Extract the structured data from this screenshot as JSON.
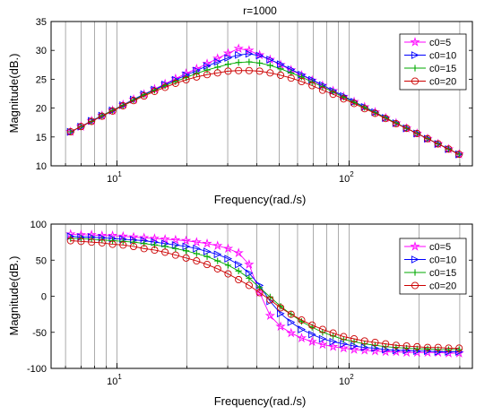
{
  "chart_data": [
    {
      "type": "line",
      "title": "r=1000",
      "xlabel": "Frequency(rad./s)",
      "ylabel": "Magnitude(dB.)",
      "xscale": "log",
      "xlim": [
        5.2,
        340
      ],
      "ylim": [
        10,
        35
      ],
      "yticks": [
        10,
        15,
        20,
        25,
        30,
        35
      ],
      "xticks": [
        {
          "value": 10,
          "base": "10",
          "exp": "1"
        },
        {
          "value": 100,
          "base": "10",
          "exp": "2"
        }
      ],
      "grid": "vertical-only",
      "legend_position": "top-right",
      "x": [
        6.31,
        7.0,
        7.77,
        8.62,
        9.57,
        10.62,
        11.79,
        13.08,
        14.52,
        16.11,
        17.88,
        19.85,
        22.03,
        24.45,
        27.13,
        30.11,
        33.42,
        37.09,
        41.17,
        45.69,
        50.7,
        56.27,
        62.45,
        69.31,
        76.92,
        85.37,
        94.74,
        105.14,
        116.69,
        129.5,
        143.72,
        159.5,
        177.01,
        196.45,
        218.02,
        241.96,
        268.53,
        298.02
      ],
      "series": [
        {
          "name": "c0=5",
          "color": "#ff00ff",
          "marker": "star",
          "values": [
            15.9,
            16.8,
            17.8,
            18.7,
            19.6,
            20.6,
            21.5,
            22.4,
            23.3,
            24.2,
            25.1,
            26.0,
            26.8,
            27.7,
            28.6,
            29.5,
            30.3,
            30.0,
            29.2,
            28.4,
            27.5,
            26.6,
            25.7,
            24.8,
            23.9,
            23.0,
            22.0,
            21.1,
            20.2,
            19.3,
            18.3,
            17.4,
            16.5,
            15.6,
            14.7,
            13.8,
            12.9,
            12.0
          ]
        },
        {
          "name": "c0=10",
          "color": "#0000ff",
          "marker": "triangle-right",
          "values": [
            15.9,
            16.8,
            17.8,
            18.7,
            19.6,
            20.5,
            21.5,
            22.4,
            23.2,
            24.1,
            24.9,
            25.7,
            26.5,
            27.3,
            28.0,
            28.7,
            29.2,
            29.4,
            29.1,
            28.4,
            27.6,
            26.7,
            25.8,
            24.9,
            24.0,
            23.0,
            22.1,
            21.1,
            20.2,
            19.3,
            18.3,
            17.4,
            16.5,
            15.6,
            14.7,
            13.8,
            12.9,
            12.0
          ]
        },
        {
          "name": "c0=15",
          "color": "#00aa00",
          "marker": "plus",
          "values": [
            15.9,
            16.8,
            17.7,
            18.7,
            19.6,
            20.5,
            21.4,
            22.3,
            23.1,
            23.9,
            24.6,
            25.3,
            26.0,
            26.6,
            27.1,
            27.6,
            27.9,
            28.0,
            27.8,
            27.4,
            26.8,
            26.1,
            25.4,
            24.5,
            23.7,
            22.8,
            21.9,
            21.0,
            20.1,
            19.2,
            18.3,
            17.4,
            16.5,
            15.6,
            14.7,
            13.8,
            12.9,
            12.0
          ]
        },
        {
          "name": "c0=20",
          "color": "#cc0000",
          "marker": "circle",
          "values": [
            15.9,
            16.8,
            17.7,
            18.6,
            19.5,
            20.4,
            21.3,
            22.1,
            22.9,
            23.6,
            24.3,
            24.9,
            25.4,
            25.8,
            26.1,
            26.4,
            26.5,
            26.5,
            26.4,
            26.1,
            25.7,
            25.2,
            24.6,
            23.9,
            23.1,
            22.4,
            21.6,
            20.8,
            19.9,
            19.1,
            18.2,
            17.3,
            16.5,
            15.6,
            14.7,
            13.8,
            12.9,
            12.0
          ]
        }
      ]
    },
    {
      "type": "line",
      "title": "",
      "xlabel": "Frequency(rad./s)",
      "ylabel": "Magnitude(dB.)",
      "xscale": "log",
      "xlim": [
        5.2,
        340
      ],
      "ylim": [
        -100,
        100
      ],
      "yticks": [
        -100,
        -50,
        0,
        50,
        100
      ],
      "xticks": [
        {
          "value": 10,
          "base": "10",
          "exp": "1"
        },
        {
          "value": 100,
          "base": "10",
          "exp": "2"
        }
      ],
      "grid": "vertical-only",
      "legend_position": "top-right",
      "x": [
        6.31,
        7.0,
        7.77,
        8.62,
        9.57,
        10.62,
        11.79,
        13.08,
        14.52,
        16.11,
        17.88,
        19.85,
        22.03,
        24.45,
        27.13,
        30.11,
        33.42,
        37.09,
        41.17,
        45.69,
        50.7,
        56.27,
        62.45,
        69.31,
        76.92,
        85.37,
        94.74,
        105.14,
        116.69,
        129.5,
        143.72,
        159.5,
        177.01,
        196.45,
        218.02,
        241.96,
        268.53,
        298.02
      ],
      "series": [
        {
          "name": "c0=5",
          "color": "#ff00ff",
          "marker": "star",
          "values": [
            86,
            85,
            85,
            84,
            84,
            83,
            82,
            81,
            80,
            79,
            78,
            77,
            75,
            73,
            70,
            66,
            60,
            44,
            5,
            -27,
            -42,
            -51,
            -58,
            -63,
            -67,
            -70,
            -72,
            -74,
            -75,
            -76,
            -77,
            -77,
            -78,
            -78,
            -78,
            -78,
            -79,
            -79
          ]
        },
        {
          "name": "c0=10",
          "color": "#0000ff",
          "marker": "triangle-right",
          "values": [
            83,
            82,
            82,
            81,
            80,
            79,
            78,
            77,
            75,
            73,
            71,
            69,
            66,
            62,
            58,
            52,
            44,
            32,
            15,
            -7,
            -24,
            -36,
            -46,
            -53,
            -59,
            -63,
            -66,
            -69,
            -71,
            -72,
            -74,
            -75,
            -75,
            -76,
            -76,
            -77,
            -77,
            -77
          ]
        },
        {
          "name": "c0=15",
          "color": "#00aa00",
          "marker": "plus",
          "values": [
            80,
            80,
            79,
            78,
            77,
            76,
            75,
            73,
            71,
            69,
            66,
            63,
            59,
            55,
            49,
            43,
            35,
            25,
            12,
            -1,
            -14,
            -25,
            -35,
            -43,
            -50,
            -55,
            -60,
            -63,
            -66,
            -68,
            -70,
            -71,
            -72,
            -73,
            -73,
            -74,
            -74,
            -74
          ]
        },
        {
          "name": "c0=20",
          "color": "#cc0000",
          "marker": "circle",
          "values": [
            77,
            76,
            75,
            74,
            72,
            71,
            69,
            66,
            64,
            61,
            57,
            53,
            49,
            44,
            38,
            31,
            23,
            15,
            5,
            -5,
            -16,
            -25,
            -33,
            -40,
            -46,
            -51,
            -56,
            -59,
            -62,
            -64,
            -66,
            -68,
            -69,
            -70,
            -71,
            -71,
            -72,
            -72
          ]
        }
      ]
    }
  ]
}
